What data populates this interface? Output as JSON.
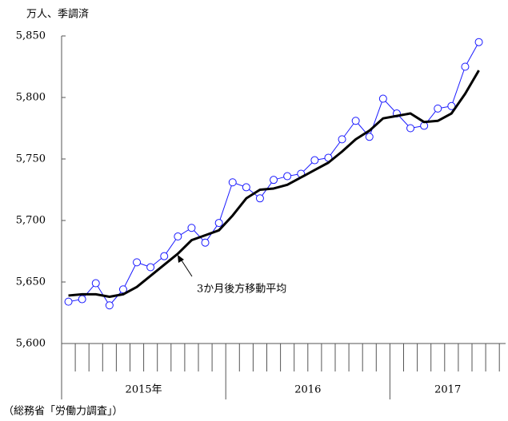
{
  "chart_data": {
    "type": "line",
    "unit_label": "万人、季調済",
    "source": "（総務省「労働力調査」）",
    "categories": [
      null,
      null,
      null,
      null,
      null,
      null,
      null,
      null,
      null,
      null,
      null,
      null,
      null,
      null,
      null,
      null,
      null,
      null,
      null,
      null,
      null,
      null,
      null,
      null,
      null,
      null,
      null,
      null,
      null,
      null,
      null
    ],
    "groups": [
      {
        "label": "2015年",
        "count": 12
      },
      {
        "label": "2016",
        "count": 12
      },
      {
        "label": "2017",
        "count": 7
      }
    ],
    "series": [
      {
        "color": "#1a1aff",
        "marker": "circle",
        "values": [
          5634,
          5636,
          5649,
          5631,
          5644,
          5666,
          5662,
          5671,
          5687,
          5694,
          5682,
          5698,
          5731,
          5727,
          5718,
          5733,
          5736,
          5738,
          5749,
          5751,
          5766,
          5781,
          5768,
          5799,
          5787,
          5775,
          5777,
          5791,
          5793,
          5825,
          5845
        ]
      },
      {
        "name": "3か月後方移動平均",
        "color": "#000000",
        "values": [
          5639,
          5640,
          5640,
          5638,
          5640,
          5646,
          5655,
          5664,
          5673,
          5684,
          5688,
          5692,
          5704,
          5718,
          5725,
          5726,
          5729,
          5735,
          5741,
          5747,
          5756,
          5766,
          5773,
          5783,
          5785,
          5787,
          5780,
          5781,
          5787,
          5803,
          5822
        ]
      }
    ],
    "ylim": [
      5600,
      5850
    ],
    "yticks": [
      {
        "value": 5600,
        "label": "5,600"
      },
      {
        "value": 5650,
        "label": "5,650"
      },
      {
        "value": 5700,
        "label": "5,700"
      },
      {
        "value": 5750,
        "label": "5,750"
      },
      {
        "value": 5800,
        "label": "5,800"
      },
      {
        "value": 5850,
        "label": "5,850"
      }
    ],
    "grid": false
  }
}
